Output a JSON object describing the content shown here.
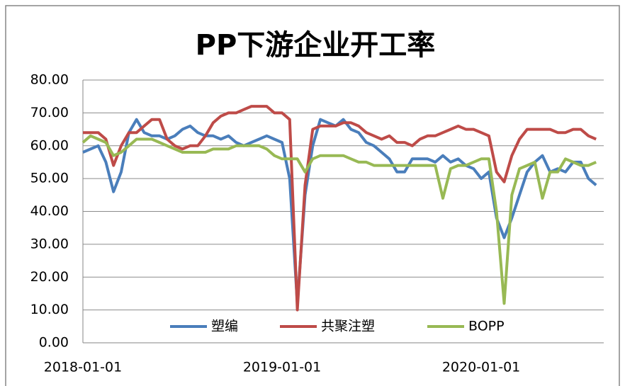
{
  "chart_data": {
    "type": "line",
    "title": "PP下游企业开工率",
    "categories": [
      "2018-01-01",
      null,
      null,
      null,
      null,
      null,
      null,
      null,
      null,
      null,
      null,
      null,
      null,
      null,
      null,
      null,
      null,
      null,
      null,
      null,
      null,
      null,
      null,
      null,
      null,
      null,
      "2019-01-01",
      null,
      null,
      null,
      null,
      null,
      null,
      null,
      null,
      null,
      null,
      null,
      null,
      null,
      null,
      null,
      null,
      null,
      null,
      null,
      null,
      null,
      null,
      null,
      null,
      null,
      "2020-01-01",
      null,
      null,
      null,
      null,
      null,
      null,
      null,
      null,
      null,
      null,
      null,
      null,
      null,
      null,
      null
    ],
    "series": [
      {
        "name": "塑编",
        "color": "#4a7ebb",
        "values": [
          58,
          59,
          60,
          55,
          46,
          52,
          64,
          68,
          64,
          63,
          63,
          62,
          63,
          65,
          66,
          64,
          63,
          63,
          62,
          63,
          61,
          60,
          61,
          62,
          63,
          62,
          61,
          50,
          12,
          45,
          60,
          68,
          67,
          66,
          68,
          65,
          64,
          61,
          60,
          58,
          56,
          52,
          52,
          56,
          56,
          56,
          55,
          57,
          55,
          56,
          54,
          53,
          50,
          52,
          38,
          32,
          38,
          45,
          52,
          55,
          57,
          52,
          53,
          52,
          55,
          55,
          50,
          48
        ]
      },
      {
        "name": "共聚注塑",
        "color": "#be4b48",
        "values": [
          64,
          64,
          64,
          62,
          54,
          60,
          64,
          64,
          66,
          68,
          68,
          62,
          60,
          59,
          60,
          60,
          63,
          67,
          69,
          70,
          70,
          71,
          72,
          72,
          72,
          70,
          70,
          68,
          10,
          48,
          65,
          66,
          66,
          66,
          67,
          67,
          66,
          64,
          63,
          62,
          63,
          61,
          61,
          60,
          62,
          63,
          63,
          64,
          65,
          66,
          65,
          65,
          64,
          63,
          52,
          49,
          57,
          62,
          65,
          65,
          65,
          65,
          64,
          64,
          65,
          65,
          63,
          62
        ]
      },
      {
        "name": "BOPP",
        "color": "#98b954",
        "values": [
          61,
          63,
          62,
          61,
          57,
          58,
          60,
          62,
          62,
          62,
          61,
          60,
          59,
          58,
          58,
          58,
          58,
          59,
          59,
          59,
          60,
          60,
          60,
          60,
          59,
          57,
          56,
          56,
          56,
          52,
          56,
          57,
          57,
          57,
          57,
          56,
          55,
          55,
          54,
          54,
          54,
          54,
          54,
          54,
          54,
          54,
          54,
          44,
          53,
          54,
          54,
          55,
          56,
          56,
          40,
          12,
          45,
          53,
          54,
          55,
          44,
          52,
          52,
          56,
          55,
          54,
          54,
          55
        ]
      }
    ],
    "ylim": [
      0,
      80
    ],
    "yticks": [
      {
        "value": 0,
        "label": "0.00"
      },
      {
        "value": 10,
        "label": "10.00"
      },
      {
        "value": 20,
        "label": "20.00"
      },
      {
        "value": 30,
        "label": "30.00"
      },
      {
        "value": 40,
        "label": "40.00"
      },
      {
        "value": 50,
        "label": "50.00"
      },
      {
        "value": 60,
        "label": "60.00"
      },
      {
        "value": 70,
        "label": "70.00"
      },
      {
        "value": 80,
        "label": "80.00"
      }
    ],
    "grid": true,
    "legend": "bottom"
  }
}
